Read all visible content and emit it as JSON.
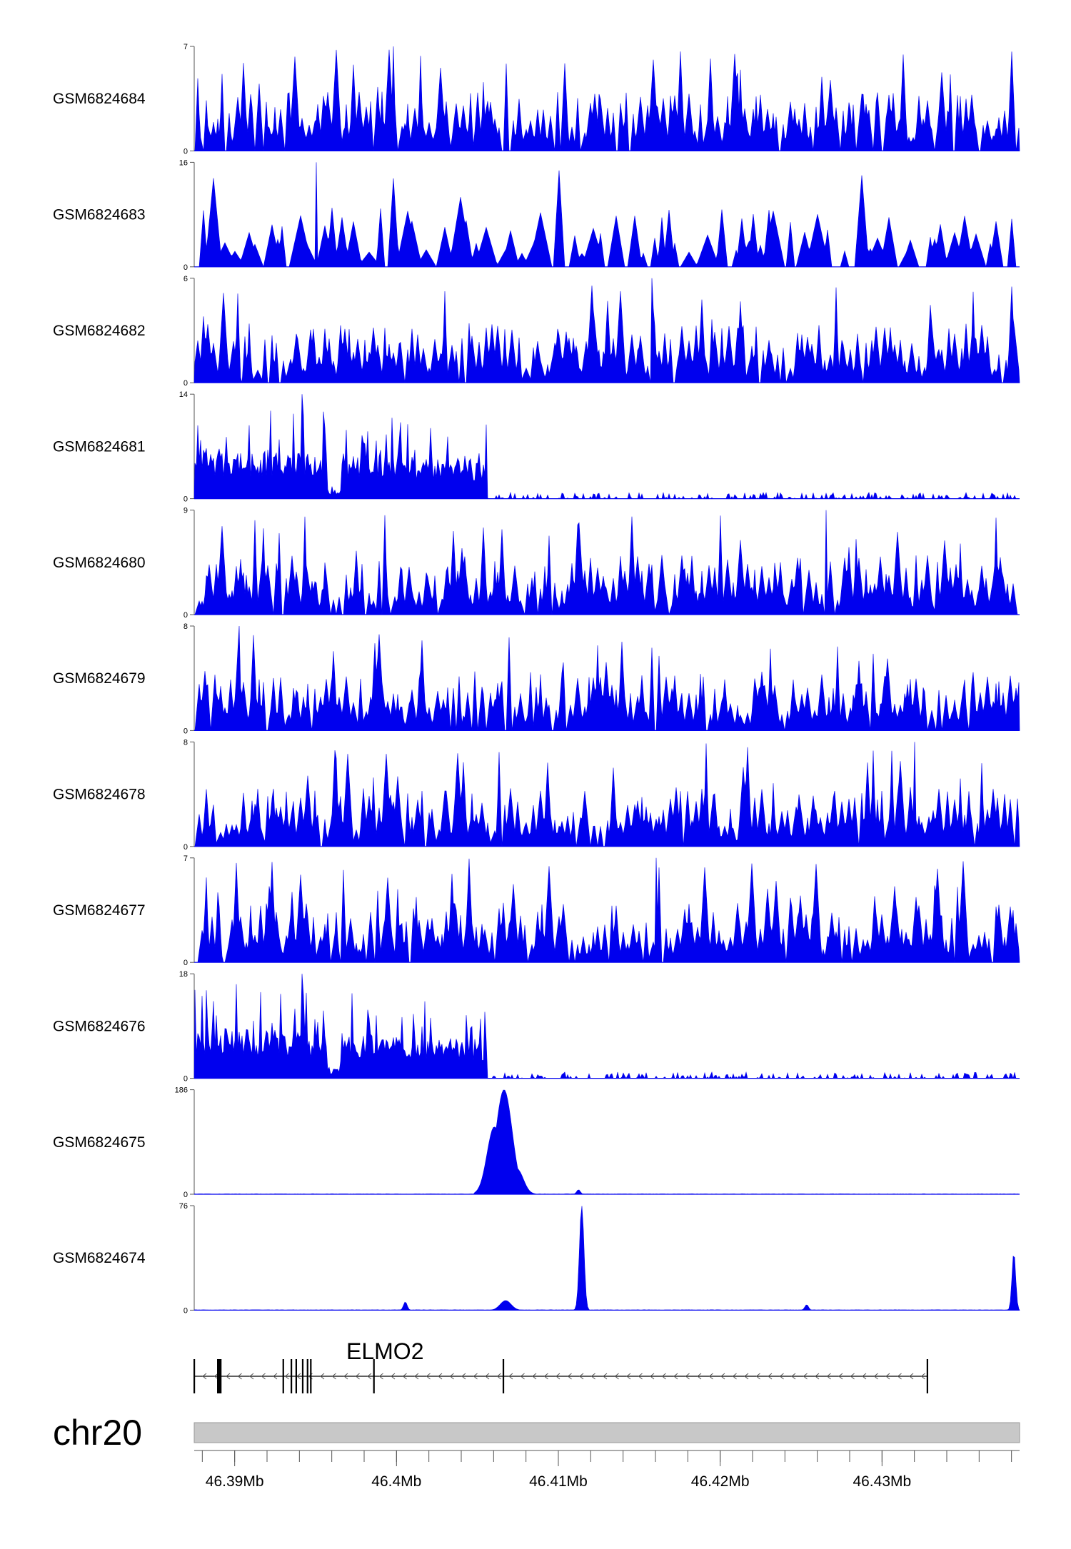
{
  "chart_data": {
    "type": "area",
    "title": "",
    "colors": {
      "signal": "#0000ee",
      "axis": "#555555",
      "ideogram": "#c8c8c8",
      "gene": "#000000"
    },
    "region": {
      "chrom": "chr20",
      "start_mb": 46.3875,
      "end_mb": 46.4385
    },
    "tracks": [
      {
        "name": "GSM6824684",
        "ymax": 7,
        "profile": "uniform-spiky",
        "peaks": []
      },
      {
        "name": "GSM6824683",
        "ymax": 16,
        "profile": "sparse-spiky",
        "peaks": []
      },
      {
        "name": "GSM6824682",
        "ymax": 6,
        "profile": "uniform-spiky",
        "peaks": []
      },
      {
        "name": "GSM6824681",
        "ymax": 14,
        "profile": "left-dense",
        "peaks": []
      },
      {
        "name": "GSM6824680",
        "ymax": 9,
        "profile": "uniform-spiky",
        "peaks": []
      },
      {
        "name": "GSM6824679",
        "ymax": 8,
        "profile": "uniform-spiky",
        "peaks": []
      },
      {
        "name": "GSM6824678",
        "ymax": 8,
        "profile": "uniform-spiky",
        "peaks": []
      },
      {
        "name": "GSM6824677",
        "ymax": 7,
        "profile": "uniform-spiky",
        "peaks": []
      },
      {
        "name": "GSM6824676",
        "ymax": 18,
        "profile": "left-dense",
        "peaks": []
      },
      {
        "name": "GSM6824675",
        "ymax": 186,
        "profile": "baseline",
        "peaks": [
          {
            "pos_mb": 46.4066,
            "height": 186,
            "width_mb": 0.0009
          },
          {
            "pos_mb": 46.406,
            "height": 120,
            "width_mb": 0.0008
          },
          {
            "pos_mb": 46.4074,
            "height": 45,
            "width_mb": 0.0007
          },
          {
            "pos_mb": 46.4112,
            "height": 8,
            "width_mb": 0.0002
          }
        ]
      },
      {
        "name": "GSM6824674",
        "ymax": 76,
        "profile": "baseline",
        "peaks": [
          {
            "pos_mb": 46.4114,
            "height": 76,
            "width_mb": 0.00025
          },
          {
            "pos_mb": 46.4381,
            "height": 42,
            "width_mb": 0.0002
          },
          {
            "pos_mb": 46.4067,
            "height": 7,
            "width_mb": 0.0006
          },
          {
            "pos_mb": 46.4005,
            "height": 6,
            "width_mb": 0.0002
          },
          {
            "pos_mb": 46.4253,
            "height": 4,
            "width_mb": 0.0002
          }
        ]
      }
    ],
    "gene": {
      "name": "ELMO2",
      "strand": "-",
      "start_mb": 46.3875,
      "end_mb": 46.4328,
      "exons_mb": [
        46.3875,
        46.389,
        46.3891,
        46.393,
        46.3935,
        46.3938,
        46.3942,
        46.3945,
        46.3947,
        46.3986,
        46.4066,
        46.4328
      ]
    },
    "chrom_label": "chr20",
    "x_tick_labels": [
      "46.39Mb",
      "46.4Mb",
      "46.41Mb",
      "46.42Mb",
      "46.43Mb"
    ],
    "x_tick_values": [
      46.39,
      46.4,
      46.41,
      46.42,
      46.43
    ],
    "minor_tick_step_mb": 0.002
  }
}
